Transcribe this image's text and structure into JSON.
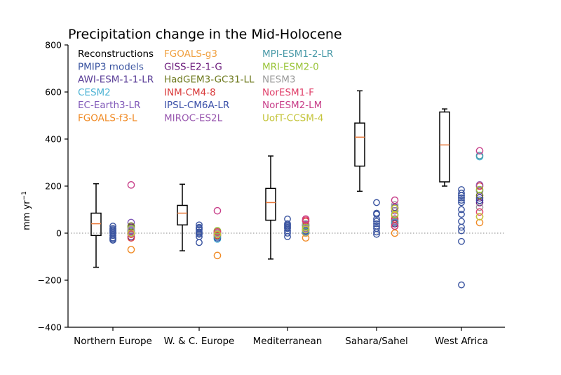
{
  "chart_data": {
    "type": "box-and-scatter",
    "title": "Precipitation change in the Mid-Holocene",
    "ylabel_main": "mm yr",
    "ylabel_sup": "−1",
    "xlabel": "",
    "ylim": [
      -400,
      800
    ],
    "yticks": [
      -400,
      -200,
      0,
      200,
      400,
      600,
      800
    ],
    "ytick_labels": [
      "−400",
      "−200",
      "0",
      "200",
      "400",
      "600",
      "800"
    ],
    "zero_line": "dotted",
    "grid": false,
    "legend_position": "top-left",
    "categories": [
      "Northern Europe",
      "W. & C. Europe",
      "Mediterranean",
      "Sahara/Sahel",
      "West Africa"
    ],
    "reconstructions": {
      "name": "Reconstructions",
      "color": "#000000",
      "median_color": "#e8793a",
      "boxes": [
        {
          "whislo": -145,
          "q1": -10,
          "med": 40,
          "q3": 85,
          "whishi": 210
        },
        {
          "whislo": -75,
          "q1": 35,
          "med": 85,
          "q3": 118,
          "whishi": 208
        },
        {
          "whislo": -110,
          "q1": 55,
          "med": 130,
          "q3": 190,
          "whishi": 328
        },
        {
          "whislo": 178,
          "q1": 285,
          "med": 408,
          "q3": 468,
          "whishi": 605
        },
        {
          "whislo": 200,
          "q1": 218,
          "med": 375,
          "q3": 515,
          "whishi": 528
        }
      ]
    },
    "pmip3": {
      "name": "PMIP3 models",
      "color": "#3a54a0",
      "values": [
        [
          30,
          20,
          10,
          0,
          -10,
          -20,
          -30,
          5,
          15,
          -25
        ],
        [
          35,
          25,
          15,
          5,
          -5,
          -15,
          -40,
          20,
          0
        ],
        [
          60,
          40,
          30,
          20,
          10,
          0,
          -15,
          25,
          35
        ],
        [
          130,
          85,
          80,
          60,
          50,
          40,
          30,
          20,
          5,
          -5
        ],
        [
          185,
          170,
          160,
          140,
          130,
          100,
          80,
          50,
          10,
          -35,
          -220,
          25,
          150
        ]
      ]
    },
    "pmip4_models": [
      {
        "name": "AWI-ESM-1-1-LR",
        "color": "#5b3f98",
        "values": [
          -15,
          -5,
          35,
          110,
          150
        ]
      },
      {
        "name": "CESM2",
        "color": "#4db3d4",
        "values": [
          5,
          -25,
          15,
          55,
          325
        ]
      },
      {
        "name": "EC-Earth3-LR",
        "color": "#8058b8",
        "values": [
          45,
          5,
          35,
          95,
          180
        ]
      },
      {
        "name": "FGOALS-f3-L",
        "color": "#f08a24",
        "values": [
          -70,
          -95,
          -20,
          0,
          45
        ]
      },
      {
        "name": "FGOALS-g3",
        "color": "#f0a040",
        "values": [
          0,
          -10,
          0,
          75,
          70
        ]
      },
      {
        "name": "GISS-E2-1-G",
        "color": "#6a1a7a",
        "values": [
          25,
          0,
          15,
          40,
          130
        ]
      },
      {
        "name": "HadGEM3-GC31-LL",
        "color": "#6e7a1e",
        "values": [
          30,
          10,
          30,
          105,
          160
        ]
      },
      {
        "name": "INM-CM4-8",
        "color": "#d93a3a",
        "values": [
          -20,
          -10,
          50,
          60,
          200
        ]
      },
      {
        "name": "IPSL-CM6A-LR",
        "color": "#3a4fa8",
        "values": [
          10,
          -20,
          10,
          30,
          140
        ]
      },
      {
        "name": "MIROC-ES2L",
        "color": "#9a5ab0",
        "values": [
          10,
          5,
          20,
          50,
          205
        ]
      },
      {
        "name": "MPI-ESM1-2-LR",
        "color": "#4a9aa8",
        "values": [
          -5,
          -15,
          5,
          45,
          330
        ]
      },
      {
        "name": "MRI-ESM2-0",
        "color": "#9ac43a",
        "values": [
          20,
          10,
          25,
          80,
          185
        ]
      },
      {
        "name": "NESM3",
        "color": "#9a9a9a",
        "values": [
          15,
          0,
          40,
          120,
          110
        ]
      },
      {
        "name": "NorESM1-F",
        "color": "#e0406a",
        "values": [
          -5,
          5,
          55,
          30,
          90
        ]
      },
      {
        "name": "NorESM2-LM",
        "color": "#c8408a",
        "values": [
          205,
          95,
          60,
          140,
          350
        ]
      },
      {
        "name": "UofT-CCSM-4",
        "color": "#c4c43a",
        "values": [
          0,
          -5,
          15,
          105,
          70
        ]
      }
    ]
  },
  "legend": {
    "columns": [
      [
        {
          "label": "Reconstructions",
          "color": "#000000"
        },
        {
          "label": "PMIP3 models",
          "color": "#3a54a0"
        },
        {
          "label": "AWI-ESM-1-1-LR",
          "color": "#5b3f98"
        },
        {
          "label": "CESM2",
          "color": "#4db3d4"
        },
        {
          "label": "EC-Earth3-LR",
          "color": "#8058b8"
        },
        {
          "label": "FGOALS-f3-L",
          "color": "#f08a24"
        }
      ],
      [
        {
          "label": "FGOALS-g3",
          "color": "#f0a040"
        },
        {
          "label": "GISS-E2-1-G",
          "color": "#6a1a7a"
        },
        {
          "label": "HadGEM3-GC31-LL",
          "color": "#6e7a1e"
        },
        {
          "label": "INM-CM4-8",
          "color": "#d93a3a"
        },
        {
          "label": "IPSL-CM6A-LR",
          "color": "#3a4fa8"
        },
        {
          "label": "MIROC-ES2L",
          "color": "#9a5ab0"
        }
      ],
      [
        {
          "label": "MPI-ESM1-2-LR",
          "color": "#4a9aa8"
        },
        {
          "label": "MRI-ESM2-0",
          "color": "#9ac43a"
        },
        {
          "label": "NESM3",
          "color": "#9a9a9a"
        },
        {
          "label": "NorESM1-F",
          "color": "#e0406a"
        },
        {
          "label": "NorESM2-LM",
          "color": "#c8408a"
        },
        {
          "label": "UofT-CCSM-4",
          "color": "#c4c43a"
        }
      ]
    ]
  }
}
